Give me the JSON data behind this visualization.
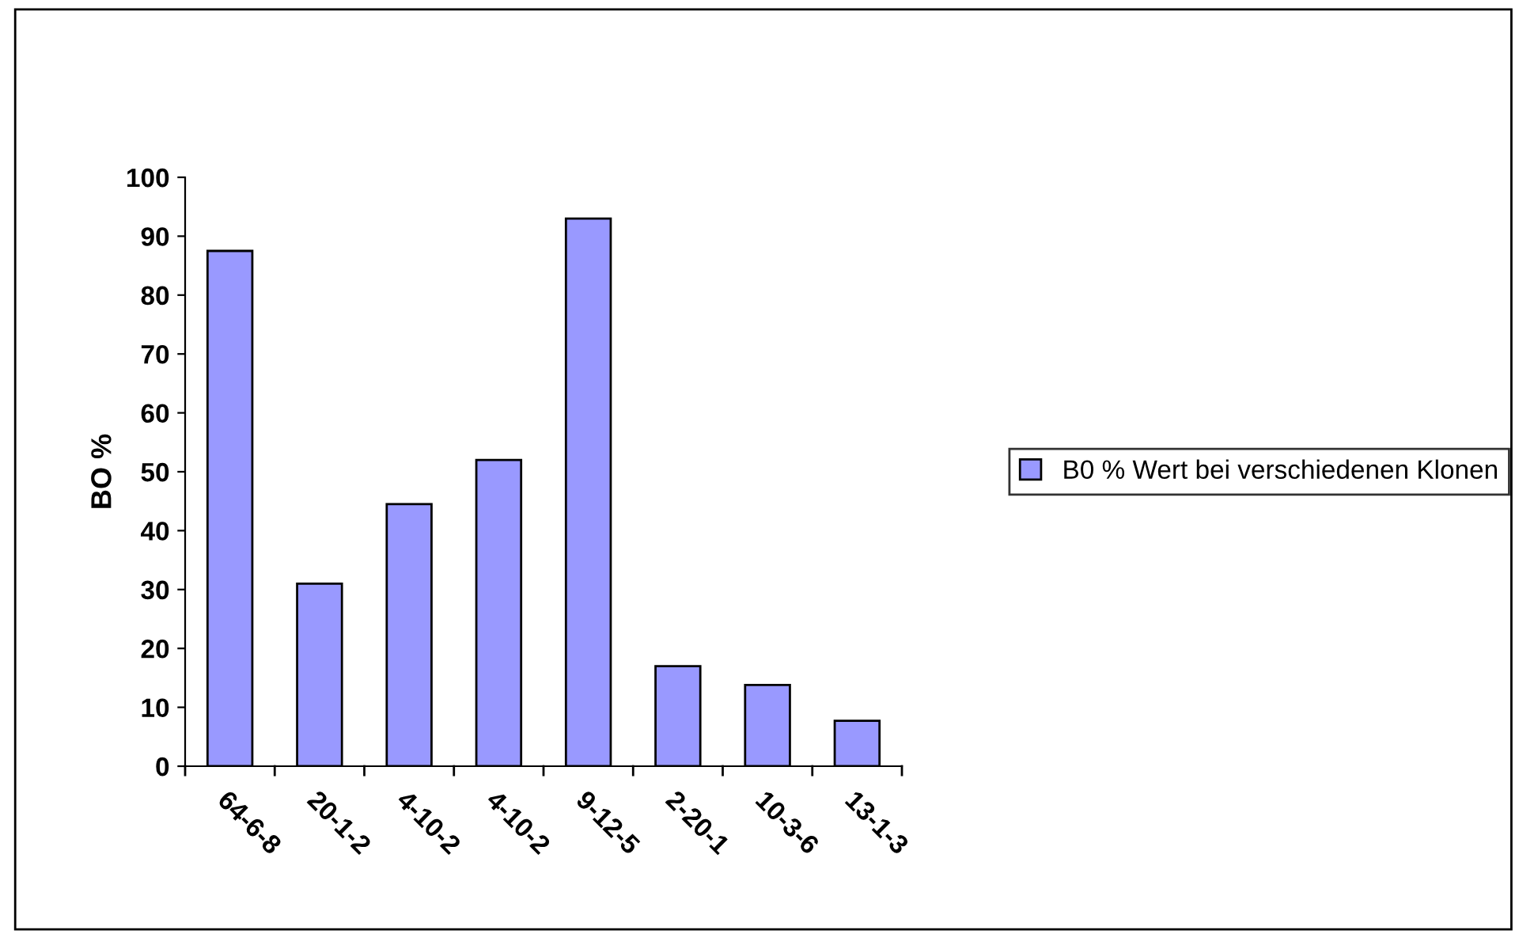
{
  "chart_data": {
    "type": "bar",
    "ylabel": "BO %",
    "categories": [
      "64-6-8",
      "20-1-2",
      "4-10-2",
      "4-10-2",
      "9-12-5",
      "2-20-1",
      "10-3-6",
      "13-1-3"
    ],
    "series": [
      {
        "name": "B0 % Wert bei verschiedenen Klonen",
        "color": "#9999ff",
        "values": [
          87.5,
          31,
          44.5,
          52,
          93,
          17,
          13.8,
          7.7
        ]
      }
    ],
    "ylim": [
      0,
      100
    ],
    "yticks": [
      0,
      10,
      20,
      30,
      40,
      50,
      60,
      70,
      80,
      90,
      100
    ],
    "grid": false,
    "legend": "right"
  }
}
